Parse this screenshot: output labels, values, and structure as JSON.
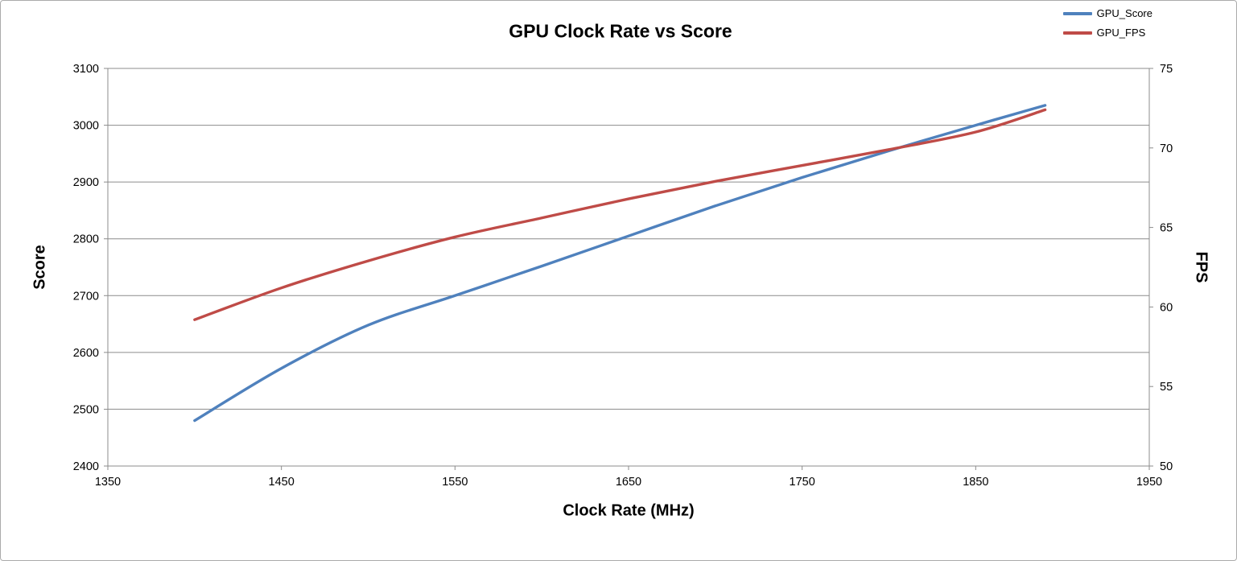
{
  "chart_data": {
    "type": "line",
    "title": "GPU Clock Rate vs Score",
    "xlabel": "Clock Rate (MHz)",
    "ylabel_left": "Score",
    "ylabel_right": "FPS",
    "xlim": [
      1350,
      1950
    ],
    "x_ticks": [
      1350,
      1450,
      1550,
      1650,
      1750,
      1850,
      1950
    ],
    "ylim_left": [
      2400,
      3100
    ],
    "y_ticks_left": [
      2400,
      2500,
      2600,
      2700,
      2800,
      2900,
      3000,
      3100
    ],
    "ylim_right": [
      50,
      75
    ],
    "y_ticks_right": [
      50,
      55,
      60,
      65,
      70,
      75
    ],
    "grid": "horizontal",
    "legend_position": "top-right",
    "x": [
      1400,
      1450,
      1500,
      1550,
      1600,
      1650,
      1700,
      1750,
      1800,
      1850,
      1890
    ],
    "series": [
      {
        "name": "GPU_Score",
        "axis": "left",
        "color": "#4f81bd",
        "values": [
          2480,
          2572,
          2648,
          2700,
          2752,
          2805,
          2858,
          2908,
          2955,
          3000,
          3035
        ]
      },
      {
        "name": "GPU_FPS",
        "axis": "right",
        "color": "#bf4b47",
        "values": [
          59.2,
          61.2,
          62.9,
          64.4,
          65.6,
          66.8,
          67.9,
          68.9,
          69.9,
          71.0,
          72.4
        ]
      }
    ],
    "colors": {
      "gridline": "#8c8c8c",
      "axis_line": "#8c8c8c",
      "text": "#000000"
    }
  }
}
